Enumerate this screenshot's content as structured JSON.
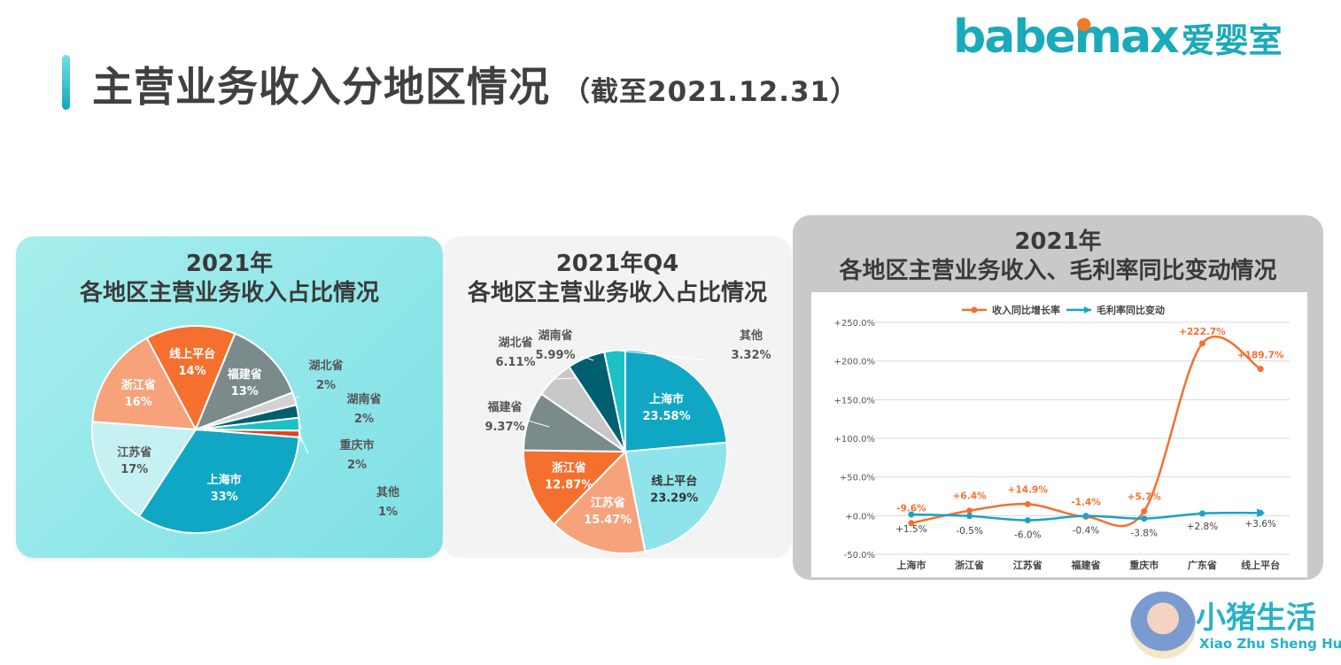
{
  "header": {
    "title": "主营业务收入分地区情况",
    "subtitle": "（截至2021.12.31）"
  },
  "logo": {
    "en": "babemax",
    "cn": "爱婴室"
  },
  "brand2": {
    "cn": "小猪生活",
    "en": "Xiao Zhu Sheng Huo"
  },
  "colors": {
    "teal": "#0fa7c4",
    "light_teal": "#5fd7e6",
    "orange": "#f5702e",
    "salmon": "#f6a27b",
    "gray": "#7b8b8b",
    "light_gray": "#c8c8c8",
    "dark_teal": "#005f6f",
    "red": "#e0401c"
  },
  "panel1": {
    "title_line1": "2021年",
    "title_line2": "各地区主营业务收入占比情况"
  },
  "panel2": {
    "title_line1": "2021年Q4",
    "title_line2": "各地区主营业务收入占比情况"
  },
  "panel3": {
    "title_line1": "2021年",
    "title_line2": "各地区主营业务收入、毛利率同比变动情况"
  },
  "chart_data": [
    {
      "type": "pie",
      "title": "2021年 各地区主营业务收入占比情况",
      "slices": [
        {
          "label": "上海市",
          "value_label": "33%",
          "value": 33,
          "color": "#0fa7c4"
        },
        {
          "label": "江苏省",
          "value_label": "17%",
          "value": 17,
          "color": "#c6f1f3"
        },
        {
          "label": "浙江省",
          "value_label": "16%",
          "value": 16,
          "color": "#f6a27b"
        },
        {
          "label": "线上平台",
          "value_label": "14%",
          "value": 14,
          "color": "#f5702e"
        },
        {
          "label": "福建省",
          "value_label": "13%",
          "value": 13,
          "color": "#7b8b8b"
        },
        {
          "label": "湖北省",
          "value_label": "2%",
          "value": 2,
          "color": "#d2d2d2"
        },
        {
          "label": "湖南省",
          "value_label": "2%",
          "value": 2,
          "color": "#005f6f"
        },
        {
          "label": "重庆市",
          "value_label": "2%",
          "value": 2,
          "color": "#1cc1c7"
        },
        {
          "label": "其他",
          "value_label": "1%",
          "value": 1,
          "color": "#e0401c"
        }
      ]
    },
    {
      "type": "pie",
      "title": "2021年Q4 各地区主营业务收入占比情况",
      "slices": [
        {
          "label": "上海市",
          "value_label": "23.58%",
          "value": 23.58,
          "color": "#0fa7c4"
        },
        {
          "label": "线上平台",
          "value_label": "23.29%",
          "value": 23.29,
          "color": "#8fe4ec"
        },
        {
          "label": "江苏省",
          "value_label": "15.47%",
          "value": 15.47,
          "color": "#f6a27b"
        },
        {
          "label": "浙江省",
          "value_label": "12.87%",
          "value": 12.87,
          "color": "#f5702e"
        },
        {
          "label": "福建省",
          "value_label": "9.37%",
          "value": 9.37,
          "color": "#7b8b8b"
        },
        {
          "label": "湖北省",
          "value_label": "6.11%",
          "value": 6.11,
          "color": "#c8c8c8"
        },
        {
          "label": "湖南省",
          "value_label": "5.99%",
          "value": 5.99,
          "color": "#005f6f"
        },
        {
          "label": "其他",
          "value_label": "3.32%",
          "value": 3.32,
          "color": "#1cc1c7"
        }
      ]
    },
    {
      "type": "line",
      "title": "2021年 各地区主营业务收入、毛利率同比变动情况",
      "categories": [
        "上海市",
        "浙江省",
        "江苏省",
        "福建省",
        "重庆市",
        "广东省",
        "线上平台"
      ],
      "yticks": [
        "+250.0%",
        "+200.0%",
        "+150.0%",
        "+100.0%",
        "+50.0%",
        "+0.0%",
        "-50.0%"
      ],
      "ylim": [
        -50,
        250
      ],
      "legend_position": "top",
      "series": [
        {
          "name": "收入同比增长率",
          "color": "#f5702e",
          "values": [
            -9.6,
            6.4,
            14.9,
            -1.4,
            5.7,
            222.7,
            189.7
          ],
          "labels": [
            "-9.6%",
            "+6.4%",
            "+14.9%",
            "-1.4%",
            "+5.7%",
            "+222.7%",
            "+189.7%"
          ]
        },
        {
          "name": "毛利率同比变动",
          "color": "#1aa3c4",
          "values": [
            1.5,
            -0.5,
            -6.0,
            -0.4,
            -3.8,
            2.8,
            3.6
          ],
          "labels": [
            "+1.5%",
            "-0.5%",
            "-6.0%",
            "-0.4%",
            "-3.8%",
            "+2.8%",
            "+3.6%"
          ]
        }
      ]
    }
  ]
}
